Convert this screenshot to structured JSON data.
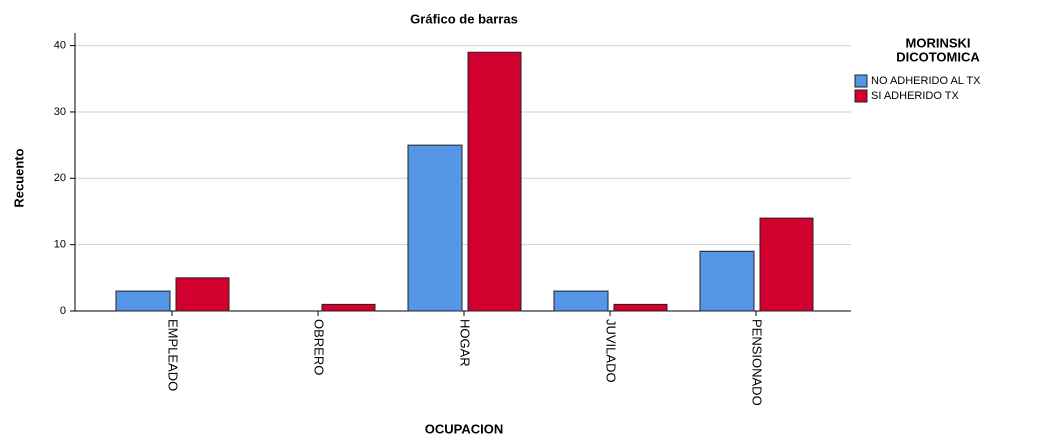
{
  "chart_data": {
    "type": "bar",
    "title": "Gráfico de barras",
    "x_label": "OCUPACION",
    "y_label": "Recuento",
    "legend_title": [
      "MORINSKI",
      "DICOTOMICA"
    ],
    "categories": [
      "EMPLEADO",
      "OBRERO",
      "HOGAR",
      "JUVILADO",
      "PENSIONADO"
    ],
    "series": [
      {
        "name": "NO ADHERIDO AL TX",
        "color": "#5596e6",
        "values": [
          3,
          0,
          25,
          3,
          9
        ]
      },
      {
        "name": "SI ADHERIDO TX",
        "color": "#d2002f",
        "values": [
          5,
          1,
          39,
          1,
          14
        ]
      }
    ],
    "ylim": [
      0,
      41.9
    ],
    "yticks": [
      0,
      10,
      20,
      30,
      40
    ],
    "grid": true,
    "legend": "right"
  }
}
